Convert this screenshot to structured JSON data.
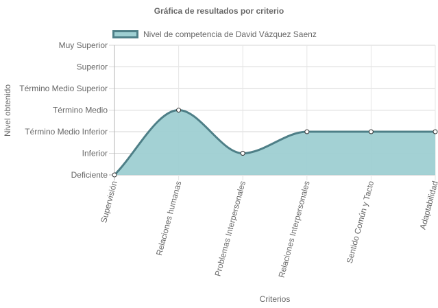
{
  "chart_data": {
    "type": "area",
    "title": "Gráfica de resultados por criterio",
    "xlabel": "Criterios",
    "ylabel": "Nivel obtenido",
    "categories": [
      "Supervisión",
      "Relaciones humanas",
      "Problemas Interpersonales",
      "Relaciones Interpersonales",
      "Sentido Común y Tacto",
      "Adaptabilidad"
    ],
    "y_levels": [
      "Deficiente",
      "Inferior",
      "Término Medio Inferior",
      "Término Medio",
      "Término Medio Superior",
      "Superior",
      "Muy Superior"
    ],
    "ylim": [
      0,
      6
    ],
    "series": [
      {
        "name": "Nivel de competencia de David Vázquez Saenz",
        "values": [
          0,
          3,
          1,
          2,
          2,
          2
        ]
      }
    ],
    "grid": true,
    "legend": "top",
    "colors": {
      "fill": "#9ecfd2",
      "line": "#4e7f87",
      "grid": "#e5e5e5",
      "axis": "#b3b3b3"
    }
  }
}
